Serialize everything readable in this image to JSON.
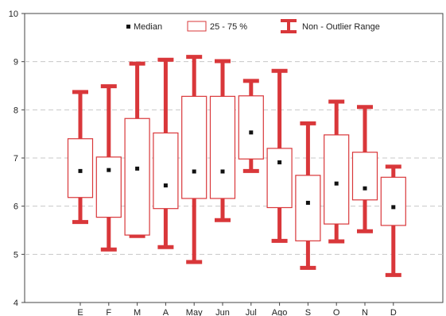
{
  "chart_data": {
    "type": "box",
    "categories": [
      "E",
      "F",
      "M",
      "A",
      "May",
      "Jun",
      "Jul",
      "Ago",
      "S",
      "O",
      "N",
      "D"
    ],
    "median": [
      6.73,
      6.75,
      6.78,
      6.43,
      6.72,
      6.72,
      7.53,
      6.91,
      6.07,
      6.47,
      6.37,
      5.98
    ],
    "q1": [
      6.18,
      5.77,
      5.4,
      5.95,
      6.16,
      6.16,
      6.98,
      5.97,
      5.28,
      5.63,
      6.13,
      5.6
    ],
    "q3": [
      7.4,
      7.02,
      7.82,
      7.52,
      8.28,
      8.28,
      8.29,
      7.2,
      6.64,
      7.48,
      7.12,
      6.6
    ],
    "whisker_low": [
      5.67,
      5.1,
      5.38,
      5.15,
      4.84,
      5.71,
      6.73,
      5.28,
      4.72,
      5.27,
      5.48,
      4.57
    ],
    "whisker_high": [
      8.37,
      8.49,
      8.96,
      9.04,
      9.1,
      9.01,
      8.6,
      8.81,
      7.72,
      8.17,
      8.06,
      6.82
    ],
    "yticks": [
      4,
      5,
      6,
      7,
      8,
      9,
      10
    ],
    "ylim": [
      4,
      10
    ],
    "grid": "horizontal-dashed",
    "legend": {
      "position": "top",
      "items": [
        {
          "label": "Median",
          "marker": "square-dot"
        },
        {
          "label": "25 - 75 %",
          "marker": "box"
        },
        {
          "label": "Non - Outlier  Range",
          "marker": "whisker"
        }
      ]
    },
    "colors": {
      "whisker": "#d9373a",
      "box_stroke": "#d9373a",
      "box_fill": "#ffffff",
      "median": "#111111",
      "grid": "#c8c8c8",
      "axis": "#444444"
    }
  }
}
